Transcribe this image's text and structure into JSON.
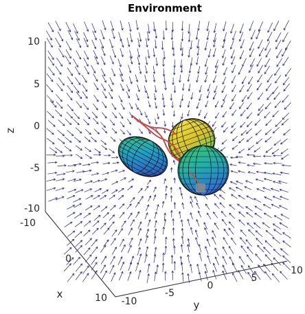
{
  "chart_data": {
    "type": "3d-scene",
    "title": "Environment",
    "xlabel": "x",
    "ylabel": "y",
    "zlabel": "z",
    "xlim": [
      -10,
      10
    ],
    "ylim": [
      -10,
      10
    ],
    "zlim": [
      -10,
      10
    ],
    "x_ticks": [
      "-10",
      "0",
      "10"
    ],
    "y_ticks": [
      "-10",
      "-5",
      "0",
      "5",
      "10"
    ],
    "z_ticks": [
      "10",
      "5",
      "0",
      "-5",
      "-10"
    ],
    "grid": false,
    "vector_field": {
      "description": "quiver arrows pointing inward / downward toward origin",
      "color": "#1f1f8c"
    },
    "obstacles": [
      {
        "shape": "ellipsoid",
        "colormap": "parula",
        "label": "left"
      },
      {
        "shape": "ellipsoid",
        "colormap": "parula",
        "label": "upper-right"
      },
      {
        "shape": "ellipsoid",
        "colormap": "parula",
        "label": "lower-right"
      }
    ],
    "trajectories_color": "#c0504d",
    "goal_marker_color": "#8c8c8c"
  }
}
